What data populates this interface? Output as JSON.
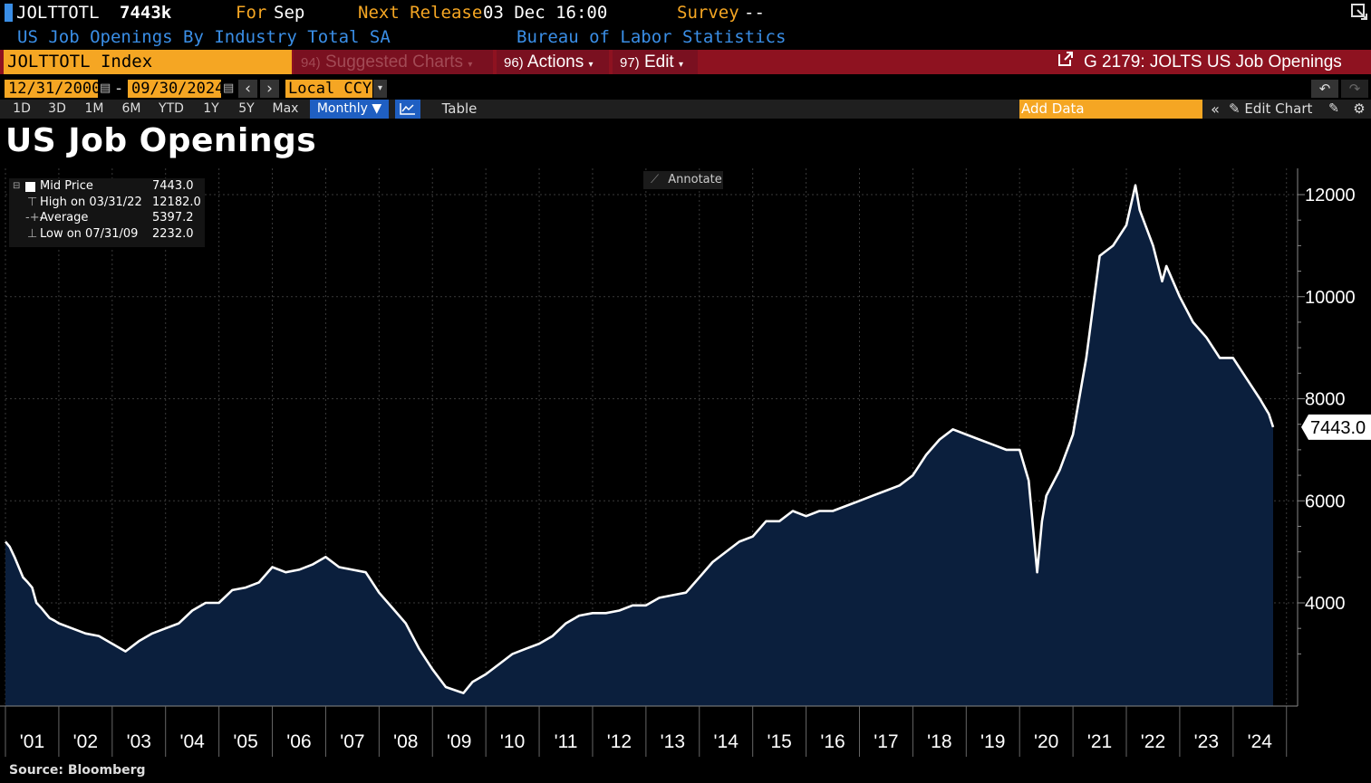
{
  "header": {
    "ticker": "JOLTTOTL",
    "last_value": "7443k",
    "for_label": "For",
    "for_value": "Sep",
    "next_release_label": "Next Release",
    "next_release_value": "03 Dec 16:00",
    "survey_label": "Survey",
    "survey_value": "--",
    "description": "US Job Openings By Industry Total SA",
    "source_agency": "Bureau of Labor Statistics"
  },
  "command_bar": {
    "security": "JOLTTOTL Index",
    "suggested_num": "94)",
    "suggested_label": "Suggested Charts",
    "actions_num": "96)",
    "actions_label": "Actions",
    "edit_num": "97)",
    "edit_label": "Edit",
    "page_label": "G 2179: JOLTS US Job Openings"
  },
  "date_bar": {
    "start_date": "12/31/2000",
    "separator": "-",
    "end_date": "09/30/2024",
    "currency": "Local CCY"
  },
  "toolbar": {
    "periods": [
      "1D",
      "3D",
      "1M",
      "6M",
      "YTD",
      "1Y",
      "5Y",
      "Max"
    ],
    "frequency": "Monthly",
    "table_label": "Table",
    "add_data_placeholder": "Add Data",
    "edit_chart_label": "Edit Chart"
  },
  "chart_title": "US Job Openings",
  "annotate_label": "Annotate",
  "legend": [
    {
      "label": "Mid Price",
      "value": "7443.0"
    },
    {
      "label": "High on 03/31/22",
      "value": "12182.0"
    },
    {
      "label": "Average",
      "value": "5397.2"
    },
    {
      "label": "Low on 07/31/09",
      "value": "2232.0"
    }
  ],
  "last_price_label": "7443.0",
  "source": "Source: Bloomberg",
  "colors": {
    "accent_orange": "#f5a623",
    "command_bar_red": "#8e1220",
    "header_blue": "#3a8ee6",
    "area_fill": "#0b1f3d",
    "line": "#ffffff"
  },
  "chart_data": {
    "type": "area",
    "title": "US Job Openings",
    "x_tick_labels": [
      "'01",
      "'02",
      "'03",
      "'04",
      "'05",
      "'06",
      "'07",
      "'08",
      "'09",
      "'10",
      "'11",
      "'12",
      "'13",
      "'14",
      "'15",
      "'16",
      "'17",
      "'18",
      "'19",
      "'20",
      "'21",
      "'22",
      "'23",
      "'24"
    ],
    "y_tick_labels": [
      "4000",
      "6000",
      "8000",
      "10000",
      "12000"
    ],
    "y_ticks": [
      4000,
      6000,
      8000,
      10000,
      12000
    ],
    "ylim": [
      2000,
      12400
    ],
    "xlim": [
      2001.0,
      2025.0
    ],
    "grid": true,
    "series": [
      {
        "name": "Mid Price",
        "x": [
          2001.0,
          2001.08,
          2001.17,
          2001.25,
          2001.33,
          2001.42,
          2001.5,
          2001.58,
          2001.67,
          2001.75,
          2001.83,
          2001.92,
          2002.0,
          2002.25,
          2002.5,
          2002.75,
          2003.0,
          2003.25,
          2003.5,
          2003.75,
          2004.0,
          2004.25,
          2004.5,
          2004.75,
          2005.0,
          2005.25,
          2005.5,
          2005.75,
          2006.0,
          2006.25,
          2006.5,
          2006.75,
          2007.0,
          2007.25,
          2007.5,
          2007.75,
          2008.0,
          2008.25,
          2008.5,
          2008.75,
          2009.0,
          2009.25,
          2009.58,
          2009.75,
          2010.0,
          2010.25,
          2010.5,
          2010.75,
          2011.0,
          2011.25,
          2011.5,
          2011.75,
          2012.0,
          2012.25,
          2012.5,
          2012.75,
          2013.0,
          2013.25,
          2013.5,
          2013.75,
          2014.0,
          2014.25,
          2014.5,
          2014.75,
          2015.0,
          2015.25,
          2015.5,
          2015.75,
          2016.0,
          2016.25,
          2016.5,
          2016.75,
          2017.0,
          2017.25,
          2017.5,
          2017.75,
          2018.0,
          2018.25,
          2018.5,
          2018.75,
          2019.0,
          2019.25,
          2019.5,
          2019.75,
          2020.0,
          2020.17,
          2020.33,
          2020.42,
          2020.5,
          2020.75,
          2021.0,
          2021.25,
          2021.5,
          2021.75,
          2022.0,
          2022.17,
          2022.25,
          2022.5,
          2022.67,
          2022.75,
          2023.0,
          2023.25,
          2023.5,
          2023.75,
          2024.0,
          2024.25,
          2024.5,
          2024.67,
          2024.75
        ],
        "values": [
          5200,
          5100,
          4900,
          4700,
          4500,
          4400,
          4300,
          4000,
          3900,
          3800,
          3700,
          3650,
          3600,
          3500,
          3400,
          3350,
          3200,
          3050,
          3250,
          3400,
          3500,
          3600,
          3850,
          4000,
          4000,
          4250,
          4300,
          4400,
          4700,
          4600,
          4650,
          4750,
          4900,
          4700,
          4650,
          4600,
          4200,
          3900,
          3600,
          3100,
          2700,
          2350,
          2232,
          2450,
          2600,
          2800,
          3000,
          3100,
          3200,
          3350,
          3600,
          3750,
          3800,
          3800,
          3850,
          3950,
          3950,
          4100,
          4150,
          4200,
          4500,
          4800,
          5000,
          5200,
          5300,
          5600,
          5600,
          5800,
          5700,
          5800,
          5800,
          5900,
          6000,
          6100,
          6200,
          6300,
          6500,
          6900,
          7200,
          7400,
          7300,
          7200,
          7100,
          7000,
          7000,
          6400,
          4600,
          5600,
          6100,
          6600,
          7300,
          8800,
          10800,
          11000,
          11400,
          12182,
          11700,
          11000,
          10300,
          10600,
          10000,
          9500,
          9200,
          8800,
          8800,
          8400,
          8000,
          7700,
          7443
        ]
      }
    ]
  }
}
